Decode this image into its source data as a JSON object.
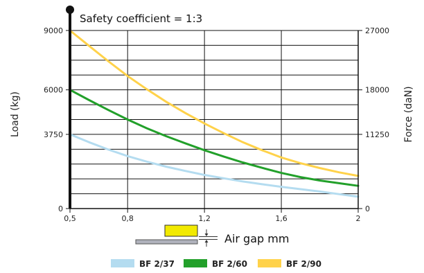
{
  "chart_data": {
    "type": "line",
    "title": "Safety coefficient = 1:3",
    "xlabel": "Air gap mm",
    "ylabel_left": "Load (kg)",
    "ylabel_right": "Force (daN)",
    "x_ticks": [
      "0,5",
      "0,8",
      "1,2",
      "1,6",
      "2"
    ],
    "x_tick_values": [
      0.5,
      0.8,
      1.2,
      1.6,
      2.0
    ],
    "y_left_ticks": [
      "0",
      "3750",
      "6000",
      "9000"
    ],
    "y_left_tick_values": [
      0,
      3750,
      6000,
      9000
    ],
    "y_right_ticks": [
      "0",
      "11250",
      "18000",
      "27000"
    ],
    "xlim": [
      0.5,
      2.0
    ],
    "ylim_left": [
      0,
      9000
    ],
    "ylim_right": [
      0,
      27000
    ],
    "grid": true,
    "legend_position": "bottom",
    "series": [
      {
        "name": "BF 2/37",
        "color": "#b4dcf0",
        "x": [
          0.5,
          0.6,
          0.7,
          0.8,
          0.9,
          1.0,
          1.1,
          1.2,
          1.3,
          1.4,
          1.5,
          1.6,
          1.7,
          1.8,
          1.9,
          2.0
        ],
        "y": [
          3750,
          3350,
          2980,
          2650,
          2370,
          2120,
          1900,
          1700,
          1530,
          1370,
          1230,
          1100,
          980,
          860,
          730,
          600
        ]
      },
      {
        "name": "BF 2/60",
        "color": "#22a02a",
        "x": [
          0.5,
          0.6,
          0.7,
          0.8,
          0.9,
          1.0,
          1.1,
          1.2,
          1.3,
          1.4,
          1.5,
          1.6,
          1.7,
          1.8,
          1.9,
          2.0
        ],
        "y": [
          6000,
          5480,
          4980,
          4500,
          4060,
          3660,
          3300,
          2950,
          2630,
          2330,
          2060,
          1800,
          1590,
          1420,
          1280,
          1150
        ]
      },
      {
        "name": "BF 2/90",
        "color": "#ffd24a",
        "x": [
          0.5,
          0.6,
          0.7,
          0.8,
          0.9,
          1.0,
          1.1,
          1.2,
          1.3,
          1.4,
          1.5,
          1.6,
          1.7,
          1.8,
          1.9,
          2.0
        ],
        "y": [
          9000,
          8220,
          7440,
          6700,
          6030,
          5400,
          4830,
          4300,
          3810,
          3350,
          2950,
          2580,
          2290,
          2050,
          1830,
          1650
        ]
      }
    ]
  },
  "colors": {
    "axis": "#111111",
    "grid": "#111111",
    "magnet": "#f2ea00",
    "plate": "#b0b2bc"
  }
}
